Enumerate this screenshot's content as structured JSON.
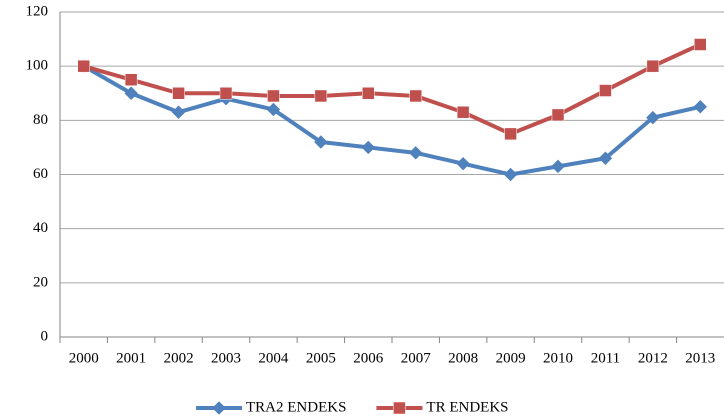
{
  "chart_data": {
    "type": "line",
    "categories": [
      "2000",
      "2001",
      "2002",
      "2003",
      "2004",
      "2005",
      "2006",
      "2007",
      "2008",
      "2009",
      "2010",
      "2011",
      "2012",
      "2013"
    ],
    "series": [
      {
        "name": "TRA2 ENDEKS",
        "color": "#4f81bd",
        "marker": "diamond",
        "values": [
          100,
          90,
          83,
          88,
          84,
          72,
          70,
          68,
          64,
          60,
          63,
          66,
          81,
          85
        ]
      },
      {
        "name": "TR ENDEKS",
        "color": "#c0504d",
        "marker": "square",
        "values": [
          100,
          95,
          90,
          90,
          89,
          89,
          90,
          89,
          83,
          75,
          82,
          91,
          100,
          108
        ]
      }
    ],
    "ylim": [
      0,
      120
    ],
    "yticks": [
      0,
      20,
      40,
      60,
      80,
      100,
      120
    ],
    "grid": true,
    "legend": "bottom"
  }
}
